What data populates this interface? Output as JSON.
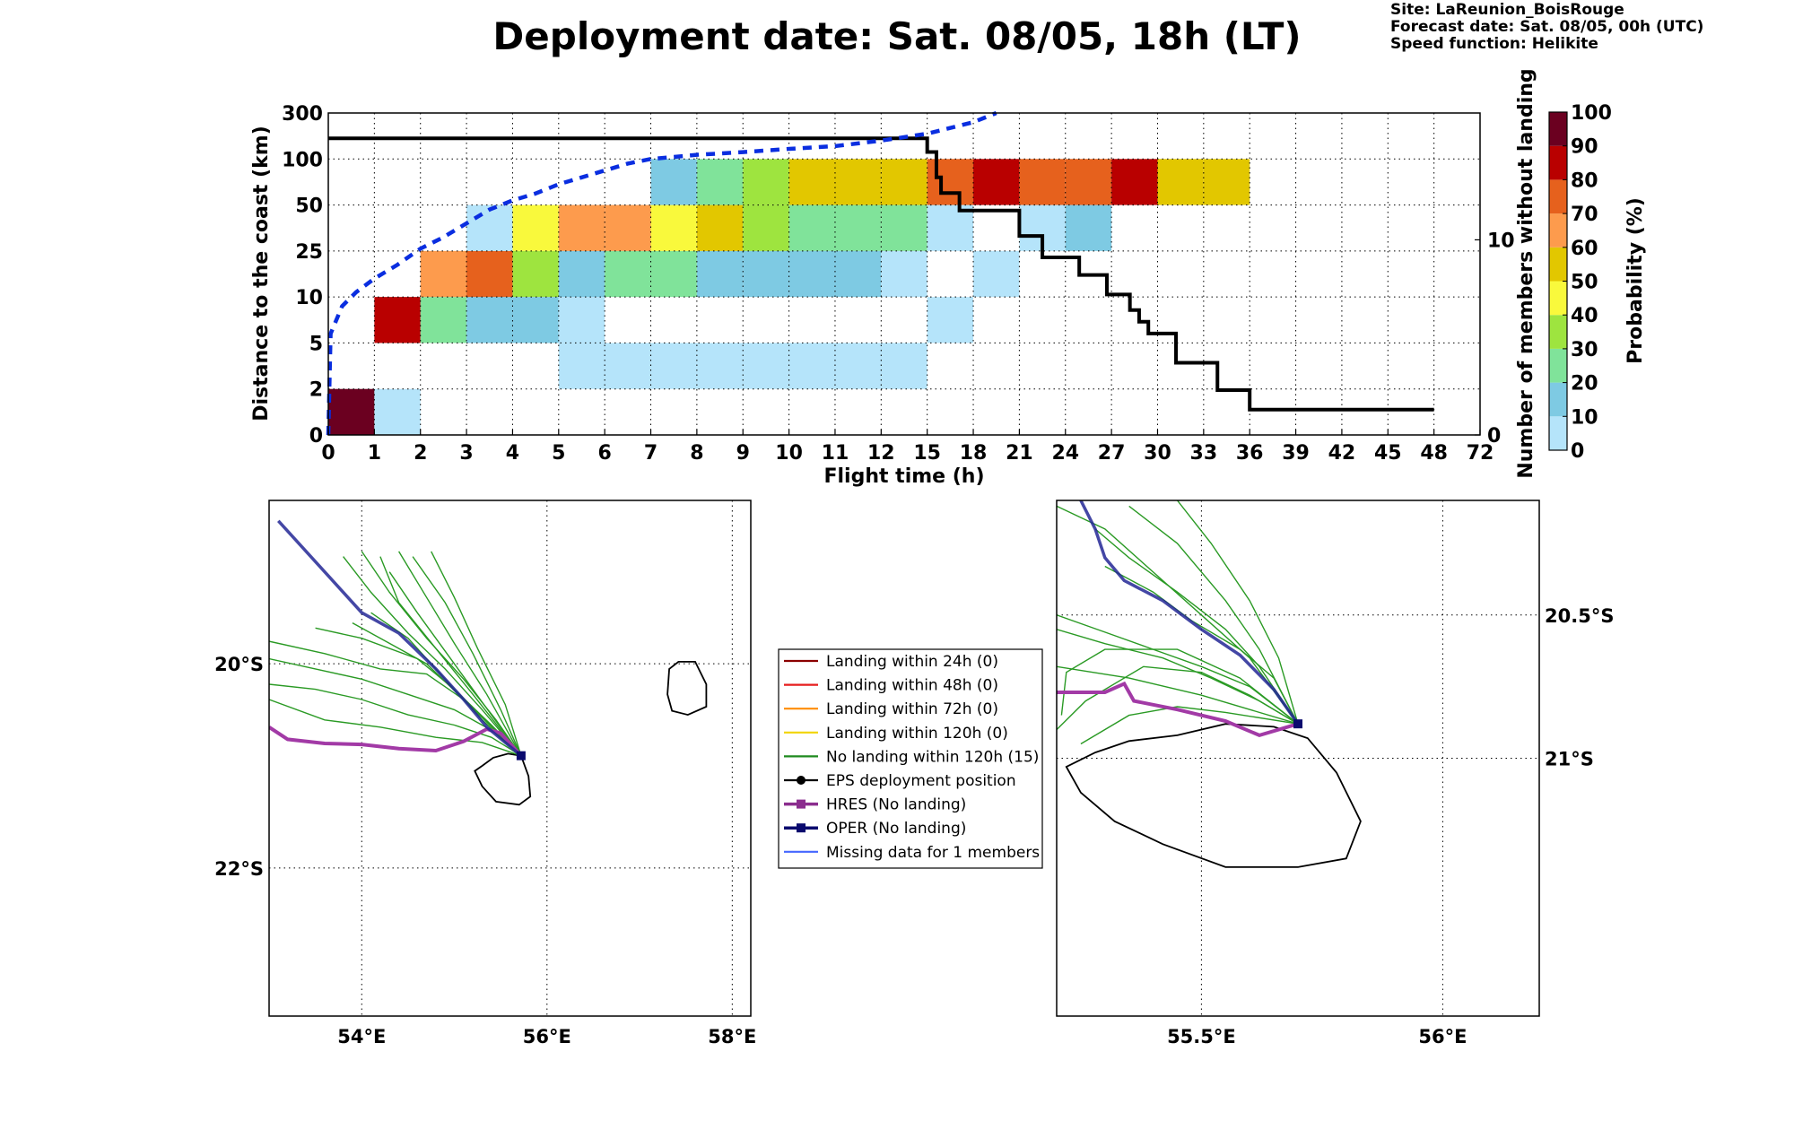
{
  "header": {
    "title": "Deployment date: Sat. 08/05, 18h (LT)",
    "site": "Site: LaReunion_BoisRouge",
    "forecast": "Forecast date: Sat. 08/05, 00h (UTC)",
    "speed": "Speed function: Helikite"
  },
  "colors": {
    "0": "#b5e4fa",
    "10": "#7ecae3",
    "20": "#80e39a",
    "30": "#9ee43f",
    "40": "#f9f93c",
    "50": "#e2c700",
    "60": "#fd9b4d",
    "70": "#e6611d",
    "80": "#b90000",
    "90": "#6b0020",
    "blue_curve": "#0a2ee0",
    "hres": "#a23aa6",
    "oper": "#232795",
    "members": "#2a9a24"
  },
  "chart_data": {
    "type": "heatmap",
    "xlabel": "Flight time (h)",
    "ylabel": "Distance to the coast (km)",
    "y2label": "Number of members without landing",
    "x_ticks": [
      "0",
      "1",
      "2",
      "3",
      "4",
      "5",
      "6",
      "7",
      "8",
      "9",
      "10",
      "11",
      "12",
      "15",
      "18",
      "21",
      "24",
      "27",
      "30",
      "33",
      "36",
      "39",
      "42",
      "45",
      "48",
      "72"
    ],
    "y_ticks": [
      "0",
      "2",
      "5",
      "10",
      "25",
      "50",
      "100",
      "300"
    ],
    "y2_ticks": [
      "0",
      "10"
    ],
    "y2lim": [
      0,
      16.5
    ],
    "colorbar": {
      "label": "Probability (%)",
      "ticks": [
        "0",
        "10",
        "20",
        "30",
        "40",
        "50",
        "60",
        "70",
        "80",
        "90",
        "100"
      ]
    },
    "cells": [
      [
        0,
        1,
        1,
        90
      ],
      [
        1,
        2,
        1,
        0
      ],
      [
        1,
        2,
        3,
        80
      ],
      [
        2,
        3,
        3,
        20
      ],
      [
        3,
        4,
        3,
        10
      ],
      [
        4,
        5,
        3,
        10
      ],
      [
        5,
        6,
        3,
        0
      ],
      [
        2,
        3,
        4,
        60
      ],
      [
        3,
        4,
        4,
        70
      ],
      [
        4,
        5,
        4,
        30
      ],
      [
        5,
        6,
        4,
        10
      ],
      [
        6,
        7,
        4,
        20
      ],
      [
        7,
        8,
        4,
        20
      ],
      [
        8,
        9,
        4,
        10
      ],
      [
        9,
        10,
        4,
        10
      ],
      [
        10,
        11,
        4,
        10
      ],
      [
        11,
        12,
        4,
        10
      ],
      [
        12,
        13,
        4,
        0
      ],
      [
        14,
        15,
        4,
        0
      ],
      [
        3,
        4,
        5,
        0
      ],
      [
        4,
        5,
        5,
        40
      ],
      [
        5,
        6,
        5,
        60
      ],
      [
        6,
        7,
        5,
        60
      ],
      [
        7,
        8,
        5,
        40
      ],
      [
        8,
        9,
        5,
        50
      ],
      [
        9,
        10,
        5,
        30
      ],
      [
        10,
        11,
        5,
        20
      ],
      [
        11,
        12,
        5,
        20
      ],
      [
        12,
        13,
        5,
        20
      ],
      [
        13,
        14,
        5,
        0
      ],
      [
        15,
        16,
        5,
        0
      ],
      [
        16,
        17,
        5,
        10
      ],
      [
        7,
        8,
        6,
        10
      ],
      [
        8,
        9,
        6,
        20
      ],
      [
        9,
        10,
        6,
        30
      ],
      [
        10,
        11,
        6,
        50
      ],
      [
        11,
        12,
        6,
        50
      ],
      [
        12,
        13,
        6,
        50
      ],
      [
        13,
        14,
        6,
        70
      ],
      [
        14,
        15,
        6,
        80
      ],
      [
        15,
        16,
        6,
        70
      ],
      [
        16,
        17,
        6,
        70
      ],
      [
        17,
        18,
        6,
        80
      ],
      [
        18,
        19,
        6,
        50
      ],
      [
        19,
        20,
        6,
        50
      ],
      [
        5,
        13,
        2,
        0
      ],
      [
        13,
        14,
        3,
        0
      ]
    ],
    "members_step": [
      [
        0,
        15.2
      ],
      [
        12.97,
        15.2
      ],
      [
        13.0,
        14.5
      ],
      [
        13.2,
        13.2
      ],
      [
        13.3,
        12.4
      ],
      [
        13.7,
        11.5
      ],
      [
        14.8,
        11.5
      ],
      [
        15.0,
        10.2
      ],
      [
        15.5,
        9.1
      ],
      [
        16.3,
        8.2
      ],
      [
        16.9,
        7.2
      ],
      [
        17.4,
        6.4
      ],
      [
        17.6,
        5.8
      ],
      [
        17.8,
        5.2
      ],
      [
        18.4,
        3.7
      ],
      [
        19.3,
        2.3
      ],
      [
        20.0,
        1.3
      ],
      [
        24.0,
        1.3
      ]
    ],
    "probability_curve": [
      [
        0,
        0
      ],
      [
        0.05,
        2.2
      ],
      [
        0.3,
        2.8
      ],
      [
        0.6,
        3.1
      ],
      [
        1.0,
        3.4
      ],
      [
        1.5,
        3.7
      ],
      [
        2.0,
        4.05
      ],
      [
        2.5,
        4.3
      ],
      [
        3.0,
        4.6
      ],
      [
        3.5,
        4.9
      ],
      [
        4.0,
        5.1
      ],
      [
        4.5,
        5.25
      ],
      [
        5.0,
        5.45
      ],
      [
        5.5,
        5.6
      ],
      [
        6.0,
        5.75
      ],
      [
        6.5,
        5.9
      ],
      [
        7.0,
        6.0
      ],
      [
        8.0,
        6.09
      ],
      [
        9.0,
        6.15
      ],
      [
        10.0,
        6.22
      ],
      [
        11.0,
        6.28
      ],
      [
        12.0,
        6.4
      ],
      [
        13.0,
        6.55
      ],
      [
        14.0,
        6.8
      ],
      [
        14.5,
        7.0
      ]
    ]
  },
  "legend": {
    "items": [
      {
        "label": "Landing within 24h (0)",
        "color": "#8b0000",
        "marker": "none"
      },
      {
        "label": "Landing within 48h (0)",
        "color": "#e61e1e",
        "marker": "none"
      },
      {
        "label": "Landing within 72h (0)",
        "color": "#ff8c00",
        "marker": "none"
      },
      {
        "label": "Landing within 120h (0)",
        "color": "#f2d400",
        "marker": "none"
      },
      {
        "label": "No landing within 120h (15)",
        "color": "#1f8a1f",
        "marker": "none"
      },
      {
        "label": "EPS deployment position",
        "color": "#000000",
        "marker": "dot"
      },
      {
        "label": "HRES (No landing)",
        "color": "#8b2d8e",
        "marker": "square"
      },
      {
        "label": "OPER (No landing)",
        "color": "#0a0a6e",
        "marker": "square"
      },
      {
        "label": "Missing data for 1 members",
        "color": "#4466ff",
        "marker": "none"
      }
    ]
  },
  "map_left": {
    "x_ticks": [
      "54°E",
      "56°E",
      "58°E"
    ],
    "y_ticks": [
      "20°S",
      "22°S"
    ],
    "lon_range": [
      53.0,
      58.2
    ],
    "lat_range": [
      -23.45,
      -18.4
    ],
    "deployment": [
      55.72,
      -20.9
    ],
    "hres_track": [
      [
        53.0,
        -20.62
      ],
      [
        53.2,
        -20.74
      ],
      [
        53.6,
        -20.78
      ],
      [
        54.0,
        -20.79
      ],
      [
        54.4,
        -20.83
      ],
      [
        54.8,
        -20.85
      ],
      [
        55.1,
        -20.76
      ],
      [
        55.35,
        -20.64
      ],
      [
        55.5,
        -20.68
      ],
      [
        55.72,
        -20.9
      ]
    ],
    "oper_track": [
      [
        53.1,
        -18.6
      ],
      [
        53.6,
        -19.1
      ],
      [
        54.0,
        -19.5
      ],
      [
        54.4,
        -19.7
      ],
      [
        54.8,
        -20.05
      ],
      [
        55.1,
        -20.35
      ],
      [
        55.35,
        -20.62
      ],
      [
        55.72,
        -20.9
      ]
    ],
    "reunion": [
      [
        55.3,
        -21.0
      ],
      [
        55.42,
        -20.92
      ],
      [
        55.58,
        -20.88
      ],
      [
        55.72,
        -20.9
      ],
      [
        55.8,
        -21.1
      ],
      [
        55.82,
        -21.3
      ],
      [
        55.7,
        -21.38
      ],
      [
        55.45,
        -21.35
      ],
      [
        55.3,
        -21.2
      ],
      [
        55.22,
        -21.05
      ],
      [
        55.3,
        -21.0
      ]
    ],
    "mauritius": [
      [
        57.32,
        -20.05
      ],
      [
        57.42,
        -19.98
      ],
      [
        57.6,
        -19.98
      ],
      [
        57.72,
        -20.2
      ],
      [
        57.72,
        -20.42
      ],
      [
        57.52,
        -20.5
      ],
      [
        57.35,
        -20.46
      ],
      [
        57.3,
        -20.3
      ],
      [
        57.32,
        -20.05
      ]
    ],
    "members": [
      [
        [
          53.0,
          -19.78
        ],
        [
          53.6,
          -19.9
        ],
        [
          54.2,
          -20.05
        ],
        [
          54.7,
          -20.1
        ],
        [
          55.1,
          -20.35
        ],
        [
          55.4,
          -20.6
        ],
        [
          55.72,
          -20.9
        ]
      ],
      [
        [
          53.0,
          -19.95
        ],
        [
          53.5,
          -20.05
        ],
        [
          54.0,
          -20.15
        ],
        [
          54.5,
          -20.3
        ],
        [
          55.0,
          -20.45
        ],
        [
          55.4,
          -20.65
        ],
        [
          55.72,
          -20.9
        ]
      ],
      [
        [
          53.0,
          -20.2
        ],
        [
          53.5,
          -20.25
        ],
        [
          54.0,
          -20.35
        ],
        [
          54.5,
          -20.5
        ],
        [
          55.0,
          -20.6
        ],
        [
          55.4,
          -20.72
        ],
        [
          55.72,
          -20.9
        ]
      ],
      [
        [
          53.0,
          -20.35
        ],
        [
          53.6,
          -20.55
        ],
        [
          54.2,
          -20.62
        ],
        [
          54.8,
          -20.72
        ],
        [
          55.3,
          -20.77
        ],
        [
          55.72,
          -20.9
        ]
      ],
      [
        [
          53.8,
          -18.95
        ],
        [
          54.1,
          -19.3
        ],
        [
          54.5,
          -19.7
        ],
        [
          54.9,
          -20.05
        ],
        [
          55.3,
          -20.45
        ],
        [
          55.72,
          -20.9
        ]
      ],
      [
        [
          54.0,
          -18.9
        ],
        [
          54.3,
          -19.3
        ],
        [
          54.7,
          -19.75
        ],
        [
          55.1,
          -20.15
        ],
        [
          55.45,
          -20.55
        ],
        [
          55.72,
          -20.9
        ]
      ],
      [
        [
          54.2,
          -18.95
        ],
        [
          54.4,
          -19.4
        ],
        [
          54.8,
          -19.85
        ],
        [
          55.2,
          -20.3
        ],
        [
          55.72,
          -20.9
        ]
      ],
      [
        [
          54.4,
          -18.9
        ],
        [
          54.7,
          -19.35
        ],
        [
          55.0,
          -19.8
        ],
        [
          55.35,
          -20.3
        ],
        [
          55.72,
          -20.9
        ]
      ],
      [
        [
          54.55,
          -18.95
        ],
        [
          54.9,
          -19.4
        ],
        [
          55.2,
          -19.9
        ],
        [
          55.5,
          -20.45
        ],
        [
          55.72,
          -20.9
        ]
      ],
      [
        [
          54.75,
          -18.9
        ],
        [
          55.0,
          -19.35
        ],
        [
          55.25,
          -19.85
        ],
        [
          55.55,
          -20.4
        ],
        [
          55.72,
          -20.9
        ]
      ],
      [
        [
          53.9,
          -19.6
        ],
        [
          54.3,
          -19.8
        ],
        [
          54.7,
          -20.0
        ],
        [
          55.1,
          -20.35
        ],
        [
          55.72,
          -20.9
        ]
      ],
      [
        [
          54.1,
          -19.5
        ],
        [
          54.5,
          -19.75
        ],
        [
          54.9,
          -20.15
        ],
        [
          55.3,
          -20.55
        ],
        [
          55.72,
          -20.9
        ]
      ],
      [
        [
          53.5,
          -19.65
        ],
        [
          54.0,
          -19.75
        ],
        [
          54.6,
          -19.95
        ],
        [
          55.0,
          -20.25
        ],
        [
          55.4,
          -20.6
        ],
        [
          55.72,
          -20.9
        ]
      ],
      [
        [
          54.3,
          -19.1
        ],
        [
          54.6,
          -19.5
        ],
        [
          55.0,
          -20.0
        ],
        [
          55.4,
          -20.5
        ],
        [
          55.72,
          -20.9
        ]
      ]
    ]
  },
  "map_right": {
    "x_ticks": [
      "55.5°E",
      "56°E"
    ],
    "y_ticks": [
      "20.5°S",
      "21°S"
    ],
    "lon_range": [
      55.2,
      56.2
    ],
    "lat_range": [
      -21.9,
      -20.1
    ],
    "deployment": [
      55.7,
      -20.88
    ],
    "hres_track": [
      [
        55.2,
        -20.77
      ],
      [
        55.3,
        -20.77
      ],
      [
        55.34,
        -20.74
      ],
      [
        55.36,
        -20.8
      ],
      [
        55.45,
        -20.83
      ],
      [
        55.55,
        -20.87
      ],
      [
        55.62,
        -20.92
      ],
      [
        55.7,
        -20.88
      ]
    ],
    "oper_track": [
      [
        55.25,
        -20.1
      ],
      [
        55.28,
        -20.2
      ],
      [
        55.3,
        -20.3
      ],
      [
        55.34,
        -20.38
      ],
      [
        55.42,
        -20.45
      ],
      [
        55.5,
        -20.55
      ],
      [
        55.58,
        -20.64
      ],
      [
        55.65,
        -20.76
      ],
      [
        55.7,
        -20.88
      ]
    ],
    "reunion": [
      [
        55.22,
        -21.03
      ],
      [
        55.28,
        -20.98
      ],
      [
        55.35,
        -20.94
      ],
      [
        55.45,
        -20.92
      ],
      [
        55.55,
        -20.88
      ],
      [
        55.65,
        -20.89
      ],
      [
        55.72,
        -20.93
      ],
      [
        55.78,
        -21.05
      ],
      [
        55.83,
        -21.22
      ],
      [
        55.8,
        -21.35
      ],
      [
        55.7,
        -21.38
      ],
      [
        55.55,
        -21.38
      ],
      [
        55.42,
        -21.3
      ],
      [
        55.32,
        -21.22
      ],
      [
        55.25,
        -21.12
      ],
      [
        55.22,
        -21.03
      ]
    ],
    "members": [
      [
        [
          55.2,
          -20.12
        ],
        [
          55.3,
          -20.2
        ],
        [
          55.4,
          -20.35
        ],
        [
          55.5,
          -20.5
        ],
        [
          55.6,
          -20.65
        ],
        [
          55.7,
          -20.88
        ]
      ],
      [
        [
          55.28,
          -20.2
        ],
        [
          55.35,
          -20.3
        ],
        [
          55.45,
          -20.42
        ],
        [
          55.55,
          -20.55
        ],
        [
          55.62,
          -20.68
        ],
        [
          55.7,
          -20.88
        ]
      ],
      [
        [
          55.35,
          -20.12
        ],
        [
          55.45,
          -20.25
        ],
        [
          55.55,
          -20.45
        ],
        [
          55.62,
          -20.62
        ],
        [
          55.7,
          -20.88
        ]
      ],
      [
        [
          55.45,
          -20.1
        ],
        [
          55.52,
          -20.25
        ],
        [
          55.6,
          -20.45
        ],
        [
          55.66,
          -20.65
        ],
        [
          55.7,
          -20.88
        ]
      ],
      [
        [
          55.2,
          -20.55
        ],
        [
          55.3,
          -20.6
        ],
        [
          55.42,
          -20.65
        ],
        [
          55.52,
          -20.72
        ],
        [
          55.62,
          -20.8
        ],
        [
          55.7,
          -20.88
        ]
      ],
      [
        [
          55.2,
          -20.68
        ],
        [
          55.35,
          -20.72
        ],
        [
          55.5,
          -20.78
        ],
        [
          55.6,
          -20.83
        ],
        [
          55.7,
          -20.88
        ]
      ],
      [
        [
          55.25,
          -20.95
        ],
        [
          55.35,
          -20.85
        ],
        [
          55.45,
          -20.82
        ],
        [
          55.55,
          -20.84
        ],
        [
          55.7,
          -20.88
        ]
      ],
      [
        [
          55.2,
          -20.9
        ],
        [
          55.26,
          -20.8
        ],
        [
          55.38,
          -20.68
        ],
        [
          55.5,
          -20.7
        ],
        [
          55.6,
          -20.78
        ],
        [
          55.7,
          -20.88
        ]
      ],
      [
        [
          55.3,
          -20.33
        ],
        [
          55.4,
          -20.42
        ],
        [
          55.48,
          -20.52
        ],
        [
          55.58,
          -20.62
        ],
        [
          55.65,
          -20.72
        ],
        [
          55.7,
          -20.88
        ]
      ],
      [
        [
          55.2,
          -20.5
        ],
        [
          55.3,
          -20.56
        ],
        [
          55.4,
          -20.62
        ],
        [
          55.5,
          -20.68
        ],
        [
          55.6,
          -20.75
        ],
        [
          55.7,
          -20.88
        ]
      ],
      [
        [
          55.21,
          -20.85
        ],
        [
          55.22,
          -20.7
        ],
        [
          55.3,
          -20.62
        ],
        [
          55.45,
          -20.62
        ],
        [
          55.58,
          -20.72
        ],
        [
          55.7,
          -20.88
        ]
      ]
    ]
  }
}
